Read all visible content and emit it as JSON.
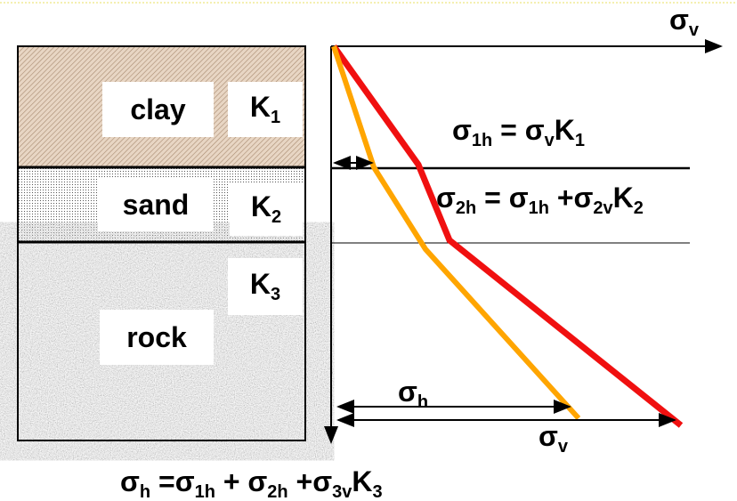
{
  "axis_label": {
    "t": "σ",
    "s": "v"
  },
  "layers": [
    {
      "name": "clay",
      "k": {
        "t": "K",
        "s": "1"
      }
    },
    {
      "name": "sand",
      "k": {
        "t": "K",
        "s": "2"
      }
    },
    {
      "name": "rock",
      "k": {
        "t": "K",
        "s": "3"
      }
    }
  ],
  "equations": [
    [
      {
        "t": "σ",
        "s": "1h"
      },
      {
        "t": " = σ",
        "s": "v"
      },
      {
        "t": "K",
        "s": "1"
      }
    ],
    [
      {
        "t": "σ",
        "s": "2h"
      },
      {
        "t": " = σ",
        "s": "1h"
      },
      {
        "t": " +σ",
        "s": "2v"
      },
      {
        "t": "K",
        "s": "2"
      }
    ],
    [
      {
        "t": "σ",
        "s": "h"
      },
      {
        "t": " =σ",
        "s": "1h"
      },
      {
        "t": " + σ",
        "s": "2h"
      },
      {
        "t": " +σ",
        "s": "3v"
      },
      {
        "t": "K",
        "s": "3"
      }
    ]
  ],
  "arrow_labels": [
    {
      "t": "σ",
      "s": "h"
    },
    {
      "t": "σ",
      "s": "v"
    }
  ]
}
